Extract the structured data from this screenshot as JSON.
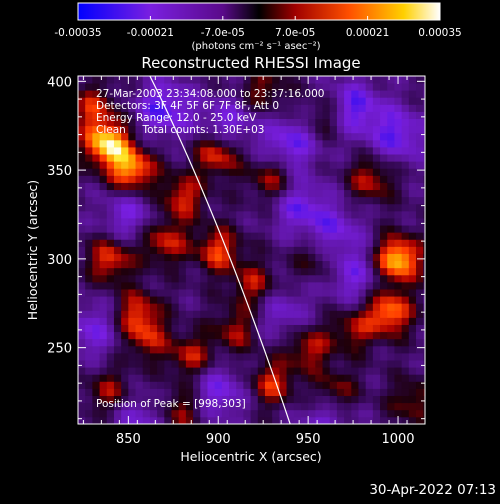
{
  "title": "Reconstructed RHESSI Image",
  "colorbar": {
    "tick_labels": [
      "-0.00035",
      "-0.00021",
      "-7.0e-05",
      "7.0e-05",
      "0.00021",
      "0.00035"
    ],
    "unit_label": "(photons cm⁻² s⁻¹ asec⁻²)",
    "range": [
      -0.00035,
      0.00035
    ],
    "colors": [
      "#0000ff",
      "#8a2be2",
      "#000000",
      "#a00000",
      "#ff6000",
      "#ffe000",
      "#ffffff"
    ]
  },
  "annotations": {
    "time_range": "27-Mar-2003 23:34:08.000 to 23:37:16.000",
    "detectors": "Detectors: 3F 4F 5F 6F 7F 8F, Att 0",
    "energy_range": "Energy Range: 12.0 - 25.0 keV",
    "clean_counts": "Clean     Total counts: 1.30E+03",
    "peak": "Position of Peak = [998,303]"
  },
  "axes": {
    "x_label": "Heliocentric X (arcsec)",
    "y_label": "Heliocentric Y (arcsec)",
    "x_ticks": [
      "850",
      "900",
      "950",
      "1000"
    ],
    "y_ticks": [
      "250",
      "300",
      "350",
      "400"
    ],
    "x_range": [
      822,
      1015
    ],
    "y_range": [
      207,
      403
    ]
  },
  "footer_date": "30-Apr-2022 07:13",
  "image": {
    "limb": [
      [
        860,
        407
      ],
      [
        900,
        327
      ],
      [
        940,
        207
      ]
    ],
    "sources": [
      {
        "x": 838,
        "y": 365,
        "a": 0.00035
      },
      {
        "x": 852,
        "y": 350,
        "a": 0.0003
      },
      {
        "x": 1000,
        "y": 300,
        "a": 0.00035
      },
      {
        "x": 995,
        "y": 270,
        "a": 0.00028
      },
      {
        "x": 900,
        "y": 360,
        "a": 0.00025
      },
      {
        "x": 880,
        "y": 335,
        "a": 0.0002
      },
      {
        "x": 930,
        "y": 345,
        "a": 0.00018
      },
      {
        "x": 870,
        "y": 310,
        "a": 0.0002
      },
      {
        "x": 900,
        "y": 305,
        "a": 0.00022
      },
      {
        "x": 920,
        "y": 285,
        "a": 0.00018
      },
      {
        "x": 840,
        "y": 300,
        "a": 0.00022
      },
      {
        "x": 855,
        "y": 270,
        "a": 0.0002
      },
      {
        "x": 860,
        "y": 255,
        "a": 0.00016
      },
      {
        "x": 885,
        "y": 245,
        "a": 0.00018
      },
      {
        "x": 910,
        "y": 260,
        "a": 0.00016
      },
      {
        "x": 930,
        "y": 230,
        "a": 0.0002
      },
      {
        "x": 950,
        "y": 250,
        "a": 0.00018
      },
      {
        "x": 965,
        "y": 225,
        "a": 0.00016
      },
      {
        "x": 975,
        "y": 260,
        "a": 0.00015
      },
      {
        "x": 955,
        "y": 300,
        "a": 0.00012
      },
      {
        "x": 985,
        "y": 345,
        "a": 0.00018
      },
      {
        "x": 960,
        "y": 380,
        "a": 0.00014
      },
      {
        "x": 925,
        "y": 395,
        "a": 0.00014
      },
      {
        "x": 880,
        "y": 215,
        "a": 0.00016
      },
      {
        "x": 840,
        "y": 225,
        "a": 0.00016
      },
      {
        "x": 1008,
        "y": 220,
        "a": 0.00014
      },
      {
        "x": 830,
        "y": 385,
        "a": 0.00018
      }
    ],
    "sinks": [
      {
        "x": 870,
        "y": 385,
        "a": 0.00022
      },
      {
        "x": 905,
        "y": 375,
        "a": 0.00018
      },
      {
        "x": 940,
        "y": 365,
        "a": 0.0002
      },
      {
        "x": 975,
        "y": 385,
        "a": 0.00022
      },
      {
        "x": 1000,
        "y": 370,
        "a": 0.0002
      },
      {
        "x": 945,
        "y": 330,
        "a": 0.00018
      },
      {
        "x": 965,
        "y": 315,
        "a": 0.00016
      },
      {
        "x": 850,
        "y": 325,
        "a": 0.00016
      },
      {
        "x": 830,
        "y": 260,
        "a": 0.00016
      },
      {
        "x": 900,
        "y": 225,
        "a": 0.00018
      },
      {
        "x": 975,
        "y": 290,
        "a": 0.00016
      },
      {
        "x": 960,
        "y": 210,
        "a": 0.00014
      },
      {
        "x": 855,
        "y": 210,
        "a": 0.00014
      },
      {
        "x": 935,
        "y": 270,
        "a": 0.00014
      }
    ]
  }
}
